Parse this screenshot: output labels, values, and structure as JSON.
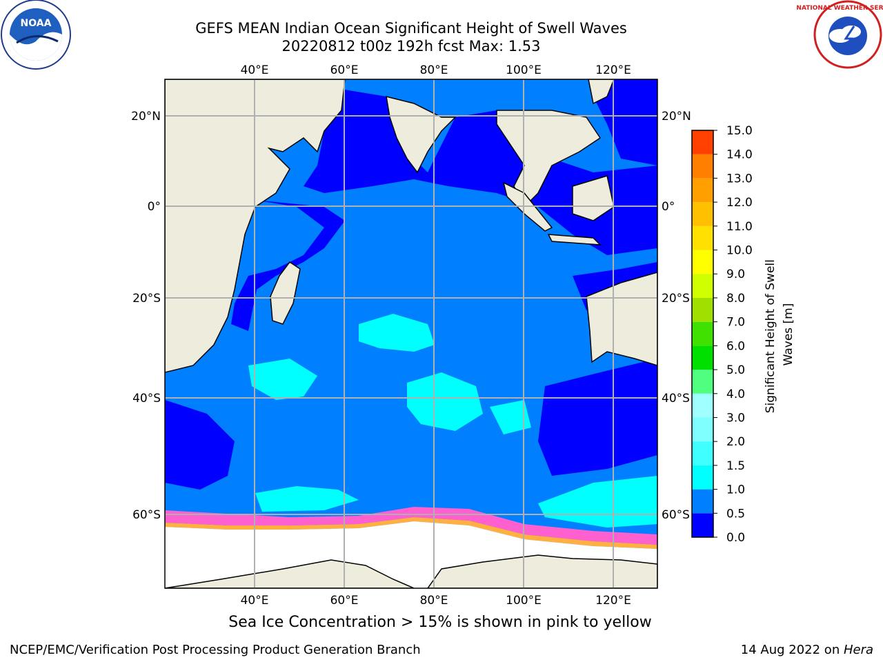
{
  "header": {
    "title_line1": "GEFS MEAN Indian Ocean Significant Height of Swell Waves",
    "title_line2": "20220812 t00z 192h fcst   Max: 1.53"
  },
  "logos": {
    "noaa_text": "NOAA",
    "nws_text": "NATIONAL WEATHER SERVICE"
  },
  "map": {
    "lon_labels": [
      "40°E",
      "60°E",
      "80°E",
      "100°E",
      "120°E"
    ],
    "lat_labels": [
      "20°N",
      "0°",
      "20°S",
      "40°S",
      "60°S"
    ],
    "colors": {
      "land": "#eeecdc",
      "ocean_low": "#0000ff",
      "ocean_mid": "#0080ff",
      "swell_high": "#00ffff",
      "ice": "#ffffff",
      "grid": "#b0b0b0"
    }
  },
  "colorbar": {
    "label": "Significant Height of Swell Waves [m]",
    "ticks": [
      "0.0",
      "0.5",
      "1.0",
      "1.5",
      "2.0",
      "3.0",
      "4.0",
      "5.0",
      "6.0",
      "7.0",
      "8.0",
      "9.0",
      "10.0",
      "11.0",
      "12.0",
      "13.0",
      "14.0",
      "15.0"
    ],
    "colors": [
      "#0000ff",
      "#0080ff",
      "#00ffff",
      "#40ffff",
      "#80ffff",
      "#a0ffff",
      "#50ff80",
      "#00e000",
      "#40e000",
      "#a0e000",
      "#d0ff00",
      "#ffff00",
      "#ffe000",
      "#ffc000",
      "#ffa000",
      "#ff8000",
      "#ff4000",
      "#ff1000"
    ]
  },
  "caption": "Sea Ice Concentration > 15% is shown in pink to yellow",
  "footer": {
    "left": "NCEP/EMC/Verification Post Processing Product Generation Branch",
    "right_date": "14 Aug 2022 on ",
    "right_host": "Hera"
  }
}
